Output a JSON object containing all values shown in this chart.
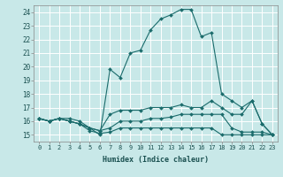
{
  "xlabel": "Humidex (Indice chaleur)",
  "background_color": "#c8e8e8",
  "grid_color": "#b8d8d8",
  "line_color": "#1a6b6b",
  "xlim": [
    -0.5,
    23.5
  ],
  "ylim": [
    14.5,
    24.5
  ],
  "yticks": [
    15,
    16,
    17,
    18,
    19,
    20,
    21,
    22,
    23,
    24
  ],
  "xticks": [
    0,
    1,
    2,
    3,
    4,
    5,
    6,
    7,
    8,
    9,
    10,
    11,
    12,
    13,
    14,
    15,
    16,
    17,
    18,
    19,
    20,
    21,
    22,
    23
  ],
  "lines": [
    {
      "x": [
        0,
        1,
        2,
        3,
        4,
        5,
        6,
        7,
        8,
        9,
        10,
        11,
        12,
        13,
        14,
        15,
        16,
        17,
        18,
        19,
        20,
        21,
        22,
        23
      ],
      "y": [
        16.2,
        16.0,
        16.2,
        16.2,
        16.0,
        15.5,
        15.0,
        19.8,
        19.2,
        21.0,
        21.2,
        22.7,
        23.5,
        23.8,
        24.2,
        24.2,
        22.2,
        22.5,
        18.0,
        17.5,
        17.0,
        17.5,
        15.8,
        15.0
      ]
    },
    {
      "x": [
        0,
        1,
        2,
        3,
        4,
        5,
        6,
        7,
        8,
        9,
        10,
        11,
        12,
        13,
        14,
        15,
        16,
        17,
        18,
        19,
        20,
        21,
        22,
        23
      ],
      "y": [
        16.2,
        16.0,
        16.2,
        16.0,
        15.8,
        15.5,
        15.3,
        16.5,
        16.8,
        16.8,
        16.8,
        17.0,
        17.0,
        17.0,
        17.2,
        17.0,
        17.0,
        17.5,
        17.0,
        16.5,
        16.5,
        17.5,
        15.8,
        15.0
      ]
    },
    {
      "x": [
        0,
        1,
        2,
        3,
        4,
        5,
        6,
        7,
        8,
        9,
        10,
        11,
        12,
        13,
        14,
        15,
        16,
        17,
        18,
        19,
        20,
        21,
        22,
        23
      ],
      "y": [
        16.2,
        16.0,
        16.2,
        16.0,
        15.8,
        15.5,
        15.3,
        15.5,
        16.0,
        16.0,
        16.0,
        16.2,
        16.2,
        16.3,
        16.5,
        16.5,
        16.5,
        16.5,
        16.5,
        15.5,
        15.2,
        15.2,
        15.2,
        15.0
      ]
    },
    {
      "x": [
        0,
        1,
        2,
        3,
        4,
        5,
        6,
        7,
        8,
        9,
        10,
        11,
        12,
        13,
        14,
        15,
        16,
        17,
        18,
        19,
        20,
        21,
        22,
        23
      ],
      "y": [
        16.2,
        16.0,
        16.2,
        16.0,
        15.8,
        15.3,
        15.1,
        15.2,
        15.5,
        15.5,
        15.5,
        15.5,
        15.5,
        15.5,
        15.5,
        15.5,
        15.5,
        15.5,
        15.0,
        15.0,
        15.0,
        15.0,
        15.0,
        15.0
      ]
    }
  ]
}
